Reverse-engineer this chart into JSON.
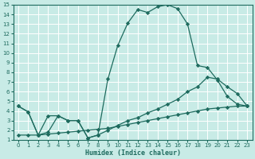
{
  "xlabel": "Humidex (Indice chaleur)",
  "xlim": [
    -0.5,
    23.5
  ],
  "ylim": [
    1,
    15
  ],
  "xticks": [
    0,
    1,
    2,
    3,
    4,
    5,
    6,
    7,
    8,
    9,
    10,
    11,
    12,
    13,
    14,
    15,
    16,
    17,
    18,
    19,
    20,
    21,
    22,
    23
  ],
  "yticks": [
    1,
    2,
    3,
    4,
    5,
    6,
    7,
    8,
    9,
    10,
    11,
    12,
    13,
    14,
    15
  ],
  "bg_color": "#c8ebe6",
  "line_color": "#1e6b5e",
  "grid_color": "#ffffff",
  "lines": [
    {
      "x": [
        0,
        1,
        2,
        3,
        4,
        5,
        6,
        7,
        8,
        9,
        10,
        11,
        12,
        13,
        14,
        15,
        16,
        17,
        18,
        19,
        20,
        21,
        22,
        23
      ],
      "y": [
        4.5,
        3.9,
        1.5,
        3.5,
        3.5,
        3.0,
        3.0,
        1.2,
        1.5,
        7.3,
        10.8,
        13.1,
        14.5,
        14.2,
        14.8,
        15.0,
        14.6,
        13.0,
        8.7,
        8.5,
        7.2,
        5.5,
        4.7,
        4.5
      ]
    },
    {
      "x": [
        0,
        1,
        2,
        3,
        4,
        5,
        6,
        7,
        8,
        9,
        10,
        11,
        12,
        13,
        14,
        15,
        16,
        17,
        18,
        19,
        20,
        21,
        22,
        23
      ],
      "y": [
        4.5,
        3.9,
        1.5,
        1.8,
        3.5,
        3.0,
        3.0,
        1.2,
        1.5,
        2.0,
        2.5,
        3.0,
        3.3,
        3.8,
        4.2,
        4.7,
        5.2,
        6.0,
        6.5,
        7.5,
        7.3,
        6.5,
        5.8,
        4.5
      ]
    },
    {
      "x": [
        0,
        1,
        2,
        3,
        4,
        5,
        6,
        7,
        8,
        9,
        10,
        11,
        12,
        13,
        14,
        15,
        16,
        17,
        18,
        19,
        20,
        21,
        22,
        23
      ],
      "y": [
        1.5,
        1.5,
        1.5,
        1.6,
        1.7,
        1.8,
        1.9,
        2.0,
        2.1,
        2.2,
        2.4,
        2.6,
        2.8,
        3.0,
        3.2,
        3.4,
        3.6,
        3.8,
        4.0,
        4.2,
        4.3,
        4.4,
        4.5,
        4.5
      ]
    }
  ]
}
